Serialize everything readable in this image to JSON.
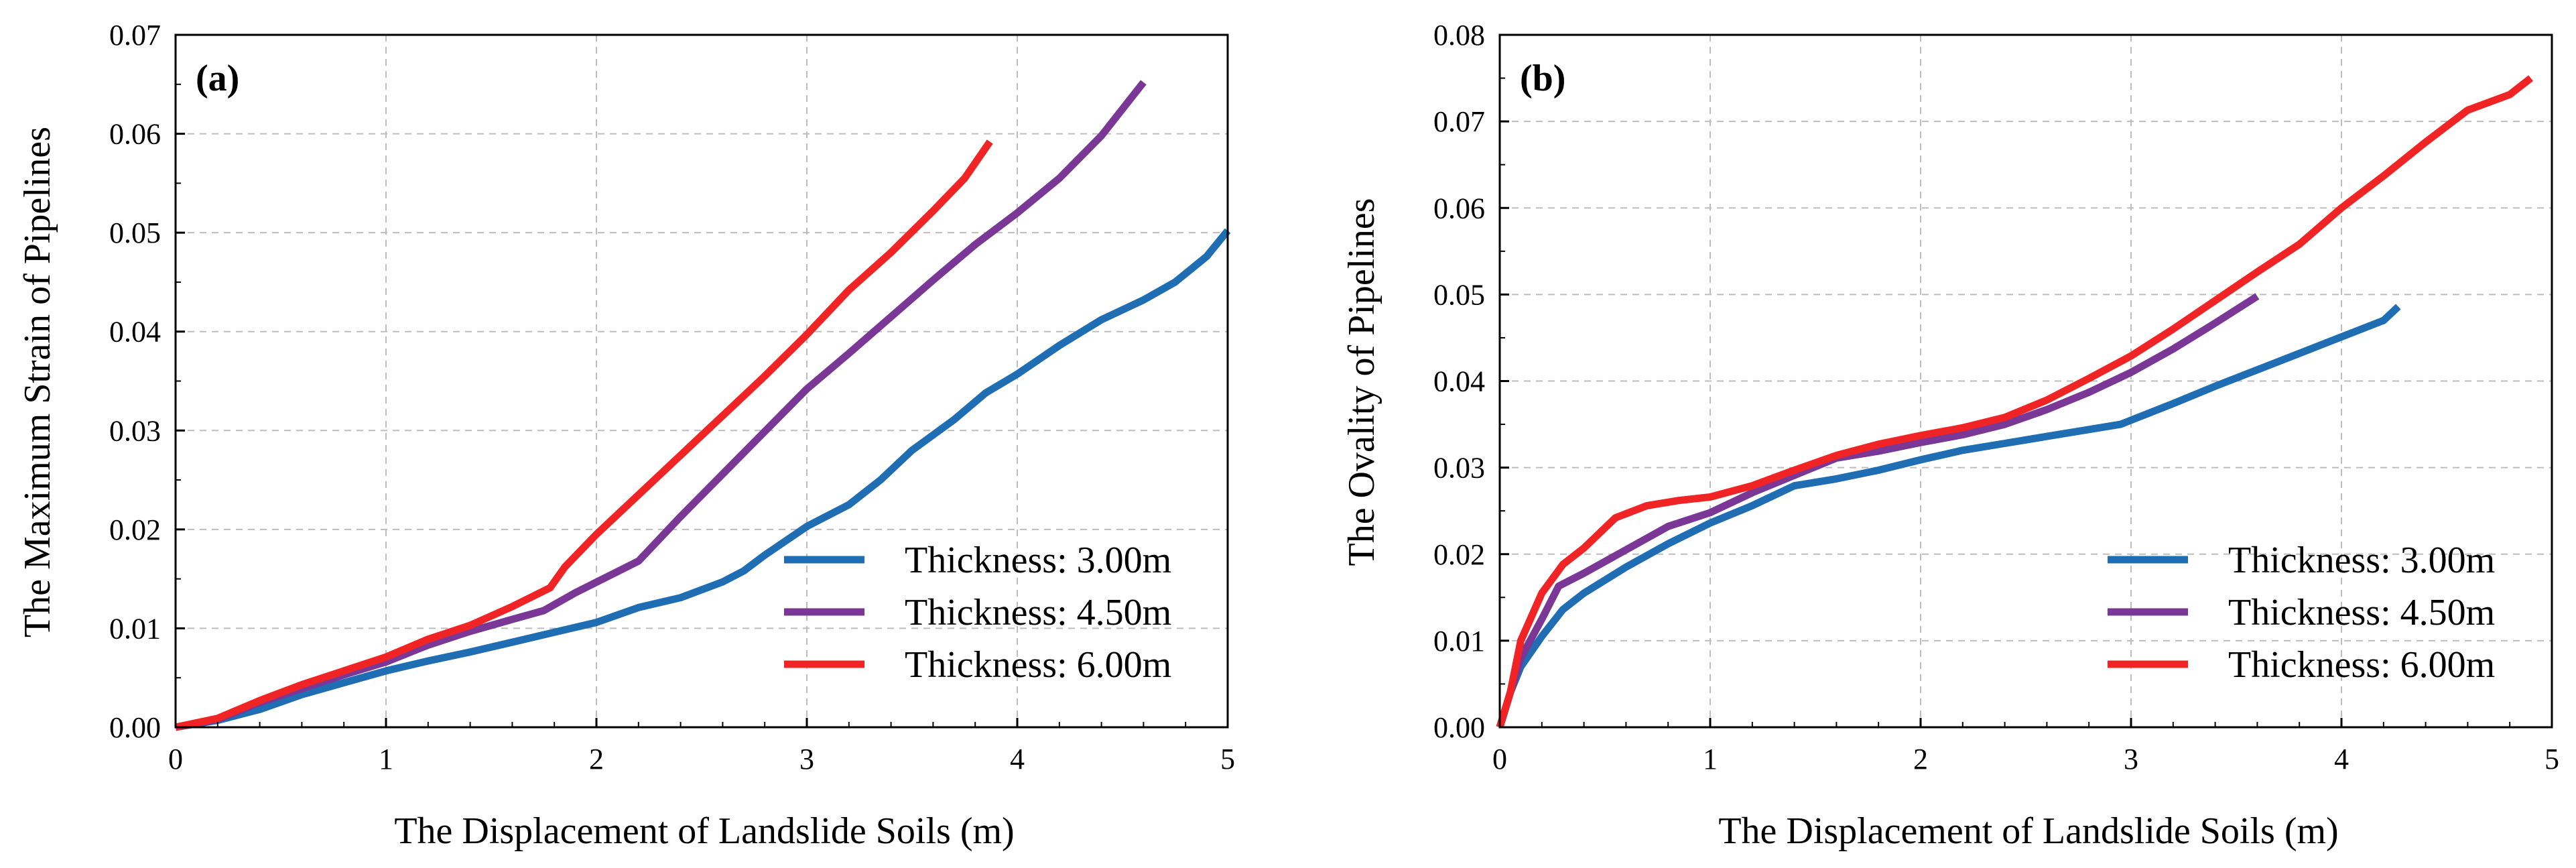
{
  "colors": {
    "series_3": "#1f6db3",
    "series_4_5": "#7a3795",
    "series_6": "#f02424",
    "grid": "#bdbdbd"
  },
  "chart_data": [
    {
      "type": "line",
      "panel_label": "(a)",
      "xlabel": "The Displacement of Landslide Soils (m)",
      "ylabel": "The Maximum Strain of Pipelines",
      "xlim": [
        0,
        5
      ],
      "ylim": [
        0,
        0.07
      ],
      "xticks": [
        "0",
        "1",
        "2",
        "3",
        "4",
        "5"
      ],
      "yticks": [
        "0.00",
        "0.01",
        "0.02",
        "0.03",
        "0.04",
        "0.05",
        "0.06",
        "0.07"
      ],
      "grid": true,
      "legend_position": "lower-right",
      "series": [
        {
          "name": "Thickness: 3.00m",
          "color": "#1f6db3",
          "x": [
            0,
            0.2,
            0.4,
            0.6,
            0.8,
            1.0,
            1.2,
            1.4,
            1.6,
            1.8,
            2.0,
            2.2,
            2.4,
            2.6,
            2.7,
            2.8,
            3.0,
            3.2,
            3.35,
            3.5,
            3.7,
            3.85,
            4.0,
            4.2,
            4.4,
            4.6,
            4.75,
            4.9,
            5.0
          ],
          "y": [
            0,
            0.0007,
            0.0018,
            0.0033,
            0.0045,
            0.0057,
            0.0067,
            0.0076,
            0.0086,
            0.0096,
            0.0106,
            0.0121,
            0.0131,
            0.0147,
            0.0158,
            0.0174,
            0.0203,
            0.0225,
            0.025,
            0.028,
            0.0311,
            0.0338,
            0.0357,
            0.0386,
            0.0412,
            0.0432,
            0.045,
            0.0476,
            0.0502
          ]
        },
        {
          "name": "Thickness: 4.50m",
          "color": "#7a3795",
          "x": [
            0,
            0.2,
            0.4,
            0.6,
            0.8,
            1.0,
            1.2,
            1.4,
            1.6,
            1.75,
            1.9,
            2.05,
            2.2,
            2.4,
            2.6,
            2.8,
            3.0,
            3.2,
            3.4,
            3.6,
            3.8,
            4.0,
            4.2,
            4.4,
            4.6
          ],
          "y": [
            0,
            0.0008,
            0.0025,
            0.0039,
            0.0053,
            0.0066,
            0.0083,
            0.0097,
            0.0109,
            0.0118,
            0.0136,
            0.0152,
            0.0168,
            0.0213,
            0.0256,
            0.0299,
            0.0342,
            0.0378,
            0.0415,
            0.0452,
            0.0488,
            0.052,
            0.0555,
            0.0598,
            0.0652
          ]
        },
        {
          "name": "Thickness: 6.00m",
          "color": "#f02424",
          "x": [
            0,
            0.2,
            0.4,
            0.6,
            0.8,
            1.0,
            1.2,
            1.4,
            1.6,
            1.78,
            1.85,
            2.0,
            2.2,
            2.4,
            2.6,
            2.8,
            3.0,
            3.2,
            3.4,
            3.6,
            3.75,
            3.87
          ],
          "y": [
            0,
            0.0009,
            0.0027,
            0.0043,
            0.0057,
            0.0071,
            0.0089,
            0.0103,
            0.0122,
            0.0141,
            0.0162,
            0.0195,
            0.0235,
            0.0275,
            0.0315,
            0.0355,
            0.0397,
            0.0442,
            0.048,
            0.0522,
            0.0555,
            0.0592
          ]
        }
      ],
      "legend": [
        "Thickness: 3.00m",
        "Thickness: 4.50m",
        "Thickness: 6.00m"
      ]
    },
    {
      "type": "line",
      "panel_label": "(b)",
      "xlabel": "The Displacement of Landslide Soils (m)",
      "ylabel": "The Ovality of Pipelines",
      "xlim": [
        0,
        5
      ],
      "ylim": [
        0,
        0.08
      ],
      "xticks": [
        "0",
        "1",
        "2",
        "3",
        "4",
        "5"
      ],
      "yticks": [
        "0.00",
        "0.01",
        "0.02",
        "0.03",
        "0.04",
        "0.05",
        "0.06",
        "0.07",
        "0.08"
      ],
      "grid": true,
      "legend_position": "lower-right",
      "series": [
        {
          "name": "Thickness: 3.00m",
          "color": "#1f6db3",
          "x": [
            0,
            0.05,
            0.1,
            0.2,
            0.3,
            0.4,
            0.6,
            0.8,
            1.0,
            1.2,
            1.4,
            1.6,
            1.8,
            2.0,
            2.2,
            2.4,
            2.6,
            2.8,
            2.95,
            3.2,
            3.4,
            3.6,
            3.8,
            4.0,
            4.2,
            4.27
          ],
          "y": [
            0,
            0.004,
            0.007,
            0.0105,
            0.0136,
            0.0155,
            0.0185,
            0.0212,
            0.0236,
            0.0256,
            0.0279,
            0.0287,
            0.0297,
            0.0309,
            0.032,
            0.0328,
            0.0336,
            0.0344,
            0.035,
            0.0374,
            0.0394,
            0.0413,
            0.0432,
            0.0451,
            0.047,
            0.0486
          ]
        },
        {
          "name": "Thickness: 4.50m",
          "color": "#7a3795",
          "x": [
            0,
            0.05,
            0.1,
            0.2,
            0.28,
            0.4,
            0.6,
            0.8,
            1.0,
            1.2,
            1.4,
            1.6,
            1.8,
            2.0,
            2.2,
            2.4,
            2.6,
            2.8,
            3.0,
            3.2,
            3.4,
            3.6
          ],
          "y": [
            0,
            0.004,
            0.008,
            0.0125,
            0.0163,
            0.0178,
            0.0205,
            0.0232,
            0.0248,
            0.0271,
            0.0291,
            0.0311,
            0.0319,
            0.0329,
            0.0338,
            0.035,
            0.0367,
            0.0387,
            0.041,
            0.0437,
            0.0467,
            0.0498
          ]
        },
        {
          "name": "Thickness: 6.00m",
          "color": "#f02424",
          "x": [
            0,
            0.05,
            0.1,
            0.2,
            0.3,
            0.4,
            0.55,
            0.7,
            0.85,
            1.0,
            1.2,
            1.4,
            1.6,
            1.8,
            2.0,
            2.2,
            2.4,
            2.6,
            2.8,
            3.0,
            3.2,
            3.4,
            3.6,
            3.8,
            4.0,
            4.2,
            4.4,
            4.6,
            4.8,
            4.9
          ],
          "y": [
            0,
            0.004,
            0.01,
            0.0155,
            0.0188,
            0.0207,
            0.0242,
            0.0256,
            0.0262,
            0.0266,
            0.0279,
            0.0297,
            0.0314,
            0.0327,
            0.0337,
            0.0346,
            0.0358,
            0.0378,
            0.0403,
            0.0429,
            0.046,
            0.0493,
            0.0526,
            0.0558,
            0.06,
            0.0637,
            0.0676,
            0.0713,
            0.0731,
            0.075
          ]
        }
      ],
      "legend": [
        "Thickness: 3.00m",
        "Thickness: 4.50m",
        "Thickness: 6.00m"
      ]
    }
  ]
}
